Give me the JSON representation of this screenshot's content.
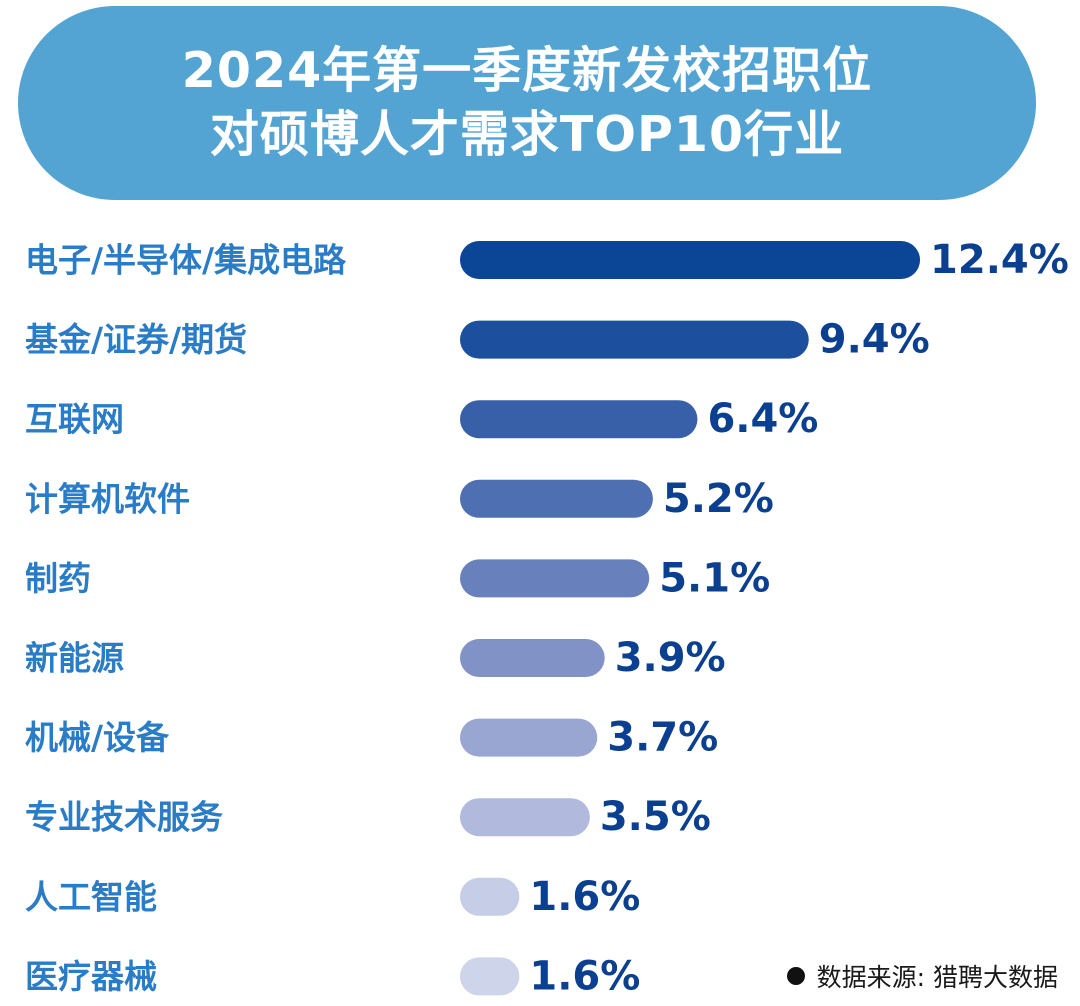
{
  "title": {
    "line1": "2024年第一季度新发校招职位",
    "line2": "对硕博人才需求TOP10行业"
  },
  "chart_data": {
    "type": "bar",
    "orientation": "horizontal",
    "categories": [
      "电子/半导体/集成电路",
      "基金/证券/期货",
      "互联网",
      "计算机软件",
      "制药",
      "新能源",
      "机械/设备",
      "专业技术服务",
      "人工智能",
      "医疗器械"
    ],
    "values": [
      12.4,
      9.4,
      6.4,
      5.2,
      5.1,
      3.9,
      3.7,
      3.5,
      1.6,
      1.6
    ],
    "value_labels": [
      "12.4%",
      "9.4%",
      "6.4%",
      "5.2%",
      "5.1%",
      "3.9%",
      "3.7%",
      "3.5%",
      "1.6%",
      "1.6%"
    ],
    "unit": "%",
    "bar_colors": [
      "#0a4596",
      "#1d4f9f",
      "#3760a8",
      "#4e70b2",
      "#6880bc",
      "#8192c6",
      "#99a6d1",
      "#b1b9dc",
      "#c6cde6",
      "#ced4ea"
    ],
    "label_color": "#2a7cc7",
    "value_color": "#0b3f8f",
    "legend": "none",
    "grid": false
  },
  "source": {
    "label": "数据来源: 猎聘大数据"
  }
}
